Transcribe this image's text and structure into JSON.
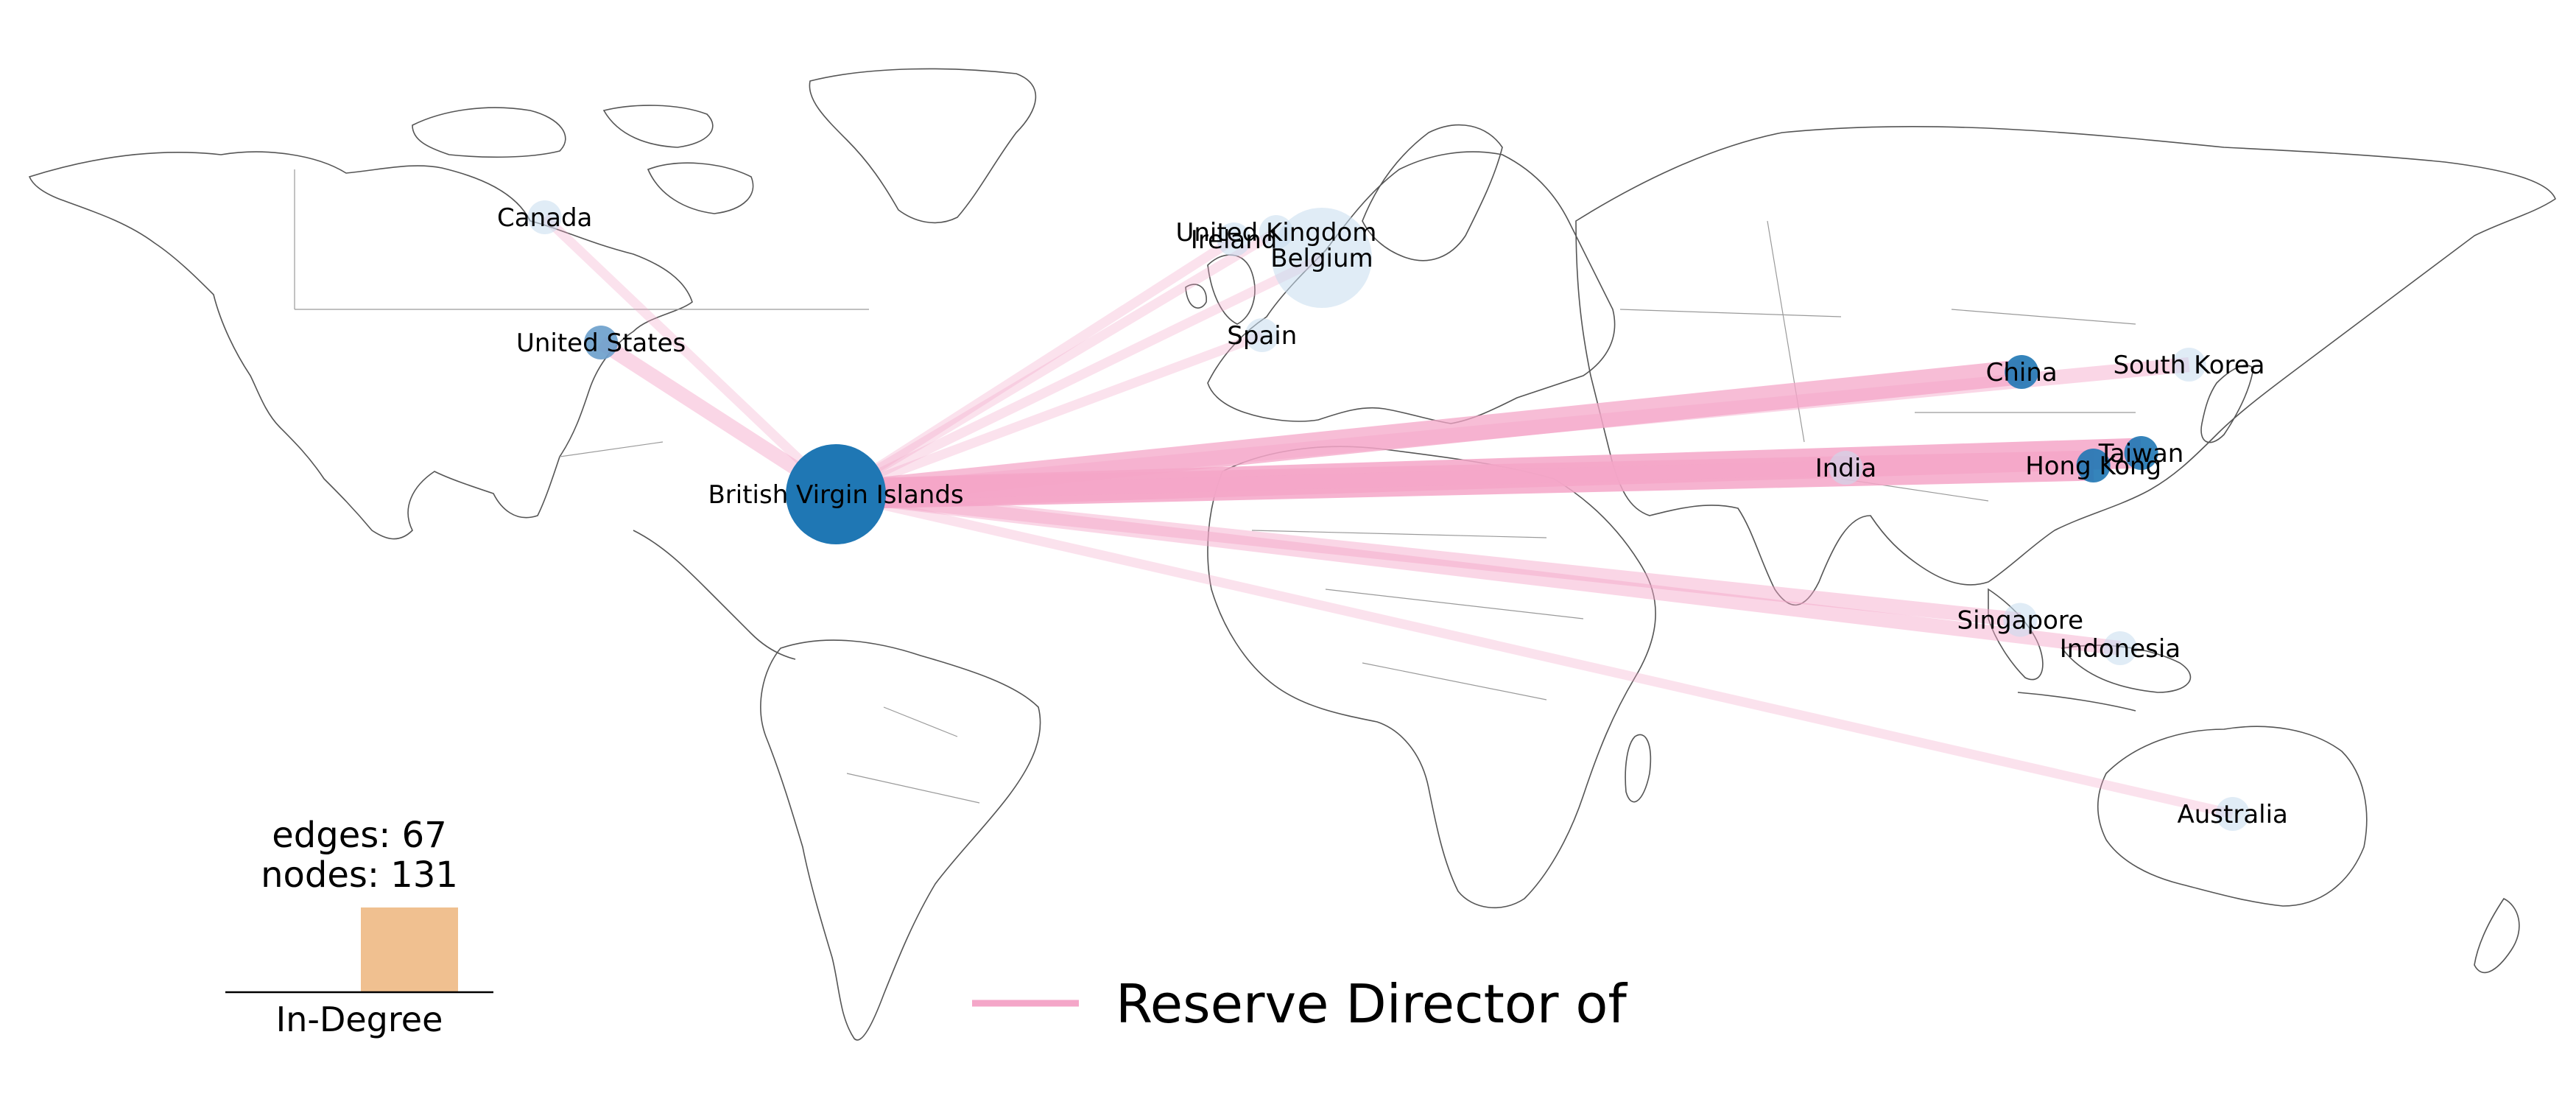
{
  "colors": {
    "edge": "#f4a6c8",
    "node_dark": "#1f77b4",
    "node_mid": "#6a9fcb",
    "node_light": "#c6dcee",
    "histogram_bar": "#f0c090",
    "land_stroke": "#555555"
  },
  "hub": {
    "name": "British Virgin Islands",
    "lon": -64.6,
    "lat": 18.4,
    "size": "large",
    "shade": "dark"
  },
  "nodes": [
    {
      "name": "Canada",
      "lon": -106,
      "lat": 56,
      "shade": "light",
      "size": "small"
    },
    {
      "name": "United States",
      "lon": -98,
      "lat": 39,
      "shade": "mid",
      "size": "small"
    },
    {
      "name": "United Kingdom",
      "lon": -2,
      "lat": 54,
      "shade": "light",
      "size": "small"
    },
    {
      "name": "Ireland",
      "lon": -8,
      "lat": 53,
      "shade": "light",
      "size": "small"
    },
    {
      "name": "Belgium",
      "lon": 4.5,
      "lat": 50.5,
      "shade": "light",
      "size": "big"
    },
    {
      "name": "Spain",
      "lon": -4,
      "lat": 40,
      "shade": "light",
      "size": "small"
    },
    {
      "name": "China",
      "lon": 104,
      "lat": 35,
      "shade": "dark",
      "size": "small"
    },
    {
      "name": "South Korea",
      "lon": 127.8,
      "lat": 36,
      "shade": "light",
      "size": "small"
    },
    {
      "name": "Taiwan",
      "lon": 121,
      "lat": 24,
      "shade": "dark",
      "size": "small"
    },
    {
      "name": "Hong Kong",
      "lon": 114.2,
      "lat": 22.3,
      "shade": "dark",
      "size": "small"
    },
    {
      "name": "India",
      "lon": 79,
      "lat": 22,
      "shade": "light",
      "size": "small"
    },
    {
      "name": "Singapore",
      "lon": 103.8,
      "lat": 1.35,
      "shade": "light",
      "size": "small"
    },
    {
      "name": "Indonesia",
      "lon": 118,
      "lat": -2.5,
      "shade": "light",
      "size": "small"
    },
    {
      "name": "Australia",
      "lon": 134,
      "lat": -25,
      "shade": "light",
      "size": "small"
    }
  ],
  "edges": [
    {
      "from": "Canada",
      "weight": 1
    },
    {
      "from": "United States",
      "weight": 2
    },
    {
      "from": "United Kingdom",
      "weight": 1
    },
    {
      "from": "Ireland",
      "weight": 1
    },
    {
      "from": "Belgium",
      "weight": 1
    },
    {
      "from": "Spain",
      "weight": 1
    },
    {
      "from": "China",
      "weight": 4
    },
    {
      "from": "South Korea",
      "weight": 2
    },
    {
      "from": "Taiwan",
      "weight": 5
    },
    {
      "from": "Hong Kong",
      "weight": 5
    },
    {
      "from": "India",
      "weight": 2
    },
    {
      "from": "Singapore",
      "weight": 2
    },
    {
      "from": "Indonesia",
      "weight": 2
    },
    {
      "from": "Australia",
      "weight": 1
    }
  ],
  "stats": {
    "edges": "edges: 67",
    "nodes": "nodes: 131"
  },
  "histogram": {
    "label": "In-Degree",
    "bins": [
      0,
      1
    ],
    "values": [
      0,
      1
    ]
  },
  "legend": {
    "label": "Reserve Director of"
  }
}
